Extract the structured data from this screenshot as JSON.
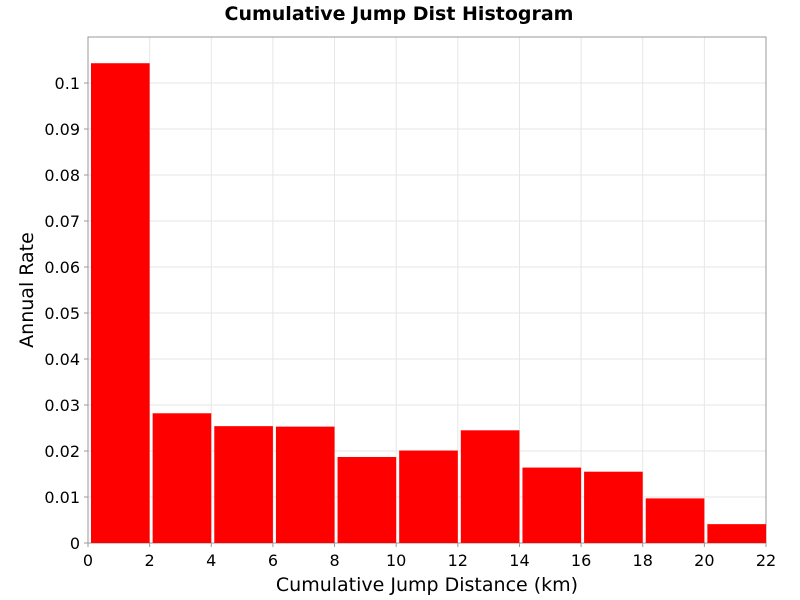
{
  "chart_data": {
    "type": "bar",
    "title": "Cumulative Jump Dist Histogram",
    "xlabel": "Cumulative Jump Distance (km)",
    "ylabel": "Annual Rate",
    "bin_width": 2,
    "bins": [
      {
        "x_start": 0,
        "x_end": 2,
        "value": 0.1043
      },
      {
        "x_start": 2,
        "x_end": 4,
        "value": 0.0282
      },
      {
        "x_start": 4,
        "x_end": 6,
        "value": 0.0254
      },
      {
        "x_start": 6,
        "x_end": 8,
        "value": 0.0253
      },
      {
        "x_start": 8,
        "x_end": 10,
        "value": 0.0187
      },
      {
        "x_start": 10,
        "x_end": 12,
        "value": 0.0201
      },
      {
        "x_start": 12,
        "x_end": 14,
        "value": 0.0245
      },
      {
        "x_start": 14,
        "x_end": 16,
        "value": 0.0164
      },
      {
        "x_start": 16,
        "x_end": 18,
        "value": 0.0155
      },
      {
        "x_start": 18,
        "x_end": 20,
        "value": 0.0097
      },
      {
        "x_start": 20,
        "x_end": 22,
        "value": 0.0041
      }
    ],
    "xlim": [
      0,
      22
    ],
    "ylim": [
      0,
      0.11
    ],
    "x_ticks": [
      "0",
      "2",
      "4",
      "6",
      "8",
      "10",
      "12",
      "14",
      "16",
      "18",
      "20",
      "22"
    ],
    "y_ticks": [
      "0",
      "0.01",
      "0.02",
      "0.03",
      "0.04",
      "0.05",
      "0.06",
      "0.07",
      "0.08",
      "0.09",
      "0.1"
    ],
    "grid": true,
    "bar_color": "#ff0000",
    "grid_color": "#e6e6e6",
    "legend": "none"
  }
}
